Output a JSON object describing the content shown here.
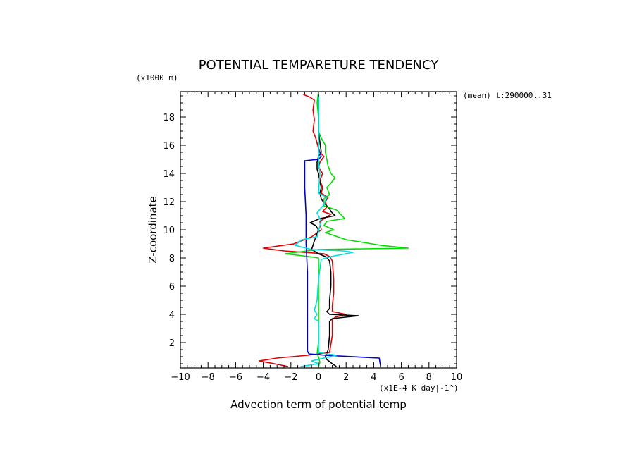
{
  "chart_data": {
    "type": "line",
    "title": "POTENTIAL TEMPARETURE TENDENCY",
    "subtitle": "(mean) t:290000..31",
    "xlabel": "Advection term of potential temp",
    "xunit": "(x1E-4 K day|-1^)",
    "ylabel": "Z-coordinate",
    "yunit": "(x1000 m)",
    "xlim": [
      -10,
      10
    ],
    "ylim": [
      0.2,
      19.8
    ],
    "x_ticks": [
      -10,
      -8,
      -6,
      -4,
      -2,
      0,
      2,
      4,
      6,
      8,
      10
    ],
    "y_ticks": [
      2,
      4,
      6,
      8,
      10,
      12,
      14,
      16,
      18
    ],
    "x_tick_labels": [
      "−10",
      "−8",
      "−6",
      "−4",
      "−2",
      "0",
      "2",
      "4",
      "6",
      "8",
      "10"
    ],
    "y_tick_labels": [
      "2",
      "4",
      "6",
      "8",
      "10",
      "12",
      "14",
      "16",
      "18"
    ],
    "grid": false,
    "colors": {
      "black": "#000000",
      "red": "#dd0000",
      "green": "#00dd00",
      "blue": "#0000cc",
      "cyan": "#00dddd"
    },
    "series": [
      {
        "color": "#dd0000",
        "points": [
          [
            -1.1,
            19.6
          ],
          [
            -0.6,
            19.4
          ],
          [
            -0.3,
            19.2
          ],
          [
            -0.4,
            18.5
          ],
          [
            -0.3,
            17.8
          ],
          [
            -0.4,
            17.0
          ],
          [
            -0.2,
            16.5
          ],
          [
            0.0,
            15.8
          ],
          [
            0.1,
            15.5
          ],
          [
            0.4,
            15.2
          ],
          [
            0.1,
            14.8
          ],
          [
            0.0,
            14.4
          ],
          [
            0.3,
            14.0
          ],
          [
            0.1,
            13.5
          ],
          [
            0.3,
            13.0
          ],
          [
            0.2,
            12.6
          ],
          [
            0.7,
            12.3
          ],
          [
            0.5,
            12.0
          ],
          [
            0.6,
            11.6
          ],
          [
            0.3,
            11.3
          ],
          [
            0.9,
            11.1
          ],
          [
            0.1,
            10.6
          ],
          [
            0.2,
            10.0
          ],
          [
            -0.5,
            9.5
          ],
          [
            -1.8,
            9.0
          ],
          [
            -4.0,
            8.7
          ],
          [
            -2.5,
            8.5
          ],
          [
            0.4,
            8.3
          ],
          [
            0.8,
            8.1
          ],
          [
            1.0,
            7.8
          ],
          [
            1.1,
            6.5
          ],
          [
            1.1,
            5.5
          ],
          [
            1.0,
            4.6
          ],
          [
            1.0,
            4.2
          ],
          [
            2.0,
            4.0
          ],
          [
            1.2,
            3.8
          ],
          [
            1.0,
            3.6
          ],
          [
            1.0,
            2.5
          ],
          [
            0.8,
            1.3
          ],
          [
            -0.8,
            1.1
          ],
          [
            -3.0,
            0.9
          ],
          [
            -4.3,
            0.7
          ],
          [
            -3.2,
            0.5
          ],
          [
            -2.2,
            0.3
          ]
        ]
      },
      {
        "color": "#000000",
        "points": [
          [
            0.0,
            19.6
          ],
          [
            0.0,
            18.5
          ],
          [
            0.0,
            17.0
          ],
          [
            0.1,
            16.2
          ],
          [
            0.2,
            15.5
          ],
          [
            0.0,
            15.2
          ],
          [
            -0.1,
            14.8
          ],
          [
            -0.1,
            14.3
          ],
          [
            0.0,
            14.0
          ],
          [
            0.1,
            13.4
          ],
          [
            0.2,
            13.0
          ],
          [
            0.1,
            12.6
          ],
          [
            0.2,
            12.2
          ],
          [
            0.4,
            11.9
          ],
          [
            0.8,
            11.5
          ],
          [
            0.9,
            11.3
          ],
          [
            1.2,
            11.0
          ],
          [
            0.1,
            10.8
          ],
          [
            -0.6,
            10.5
          ],
          [
            -0.2,
            10.3
          ],
          [
            0.0,
            10.0
          ],
          [
            -0.3,
            9.2
          ],
          [
            -0.5,
            8.6
          ],
          [
            0.0,
            8.3
          ],
          [
            0.5,
            8.1
          ],
          [
            0.8,
            7.8
          ],
          [
            0.9,
            7.0
          ],
          [
            0.9,
            6.0
          ],
          [
            0.8,
            5.0
          ],
          [
            0.8,
            4.4
          ],
          [
            0.6,
            4.2
          ],
          [
            0.8,
            4.0
          ],
          [
            2.9,
            3.9
          ],
          [
            1.0,
            3.7
          ],
          [
            0.8,
            3.5
          ],
          [
            0.8,
            2.5
          ],
          [
            0.7,
            1.5
          ],
          [
            0.6,
            1.2
          ],
          [
            0.5,
            1.0
          ],
          [
            0.6,
            0.8
          ],
          [
            1.0,
            0.5
          ],
          [
            1.3,
            0.3
          ]
        ]
      },
      {
        "color": "#00dd00",
        "points": [
          [
            0.0,
            19.8
          ],
          [
            -0.1,
            19.0
          ],
          [
            0.0,
            18.0
          ],
          [
            0.0,
            17.0
          ],
          [
            0.2,
            16.5
          ],
          [
            0.5,
            16.0
          ],
          [
            0.5,
            15.5
          ],
          [
            0.6,
            15.0
          ],
          [
            0.7,
            14.5
          ],
          [
            0.9,
            14.0
          ],
          [
            1.2,
            13.7
          ],
          [
            0.9,
            13.3
          ],
          [
            0.6,
            13.0
          ],
          [
            0.8,
            12.5
          ],
          [
            0.4,
            12.2
          ],
          [
            0.4,
            11.7
          ],
          [
            1.3,
            11.4
          ],
          [
            1.9,
            10.8
          ],
          [
            0.6,
            10.6
          ],
          [
            0.4,
            10.3
          ],
          [
            1.1,
            10.0
          ],
          [
            0.5,
            9.8
          ],
          [
            2.0,
            9.3
          ],
          [
            4.5,
            8.9
          ],
          [
            6.5,
            8.7
          ],
          [
            0.0,
            8.6
          ],
          [
            -2.4,
            8.3
          ],
          [
            -0.7,
            8.1
          ],
          [
            0.0,
            8.0
          ],
          [
            0.0,
            7.0
          ],
          [
            0.0,
            5.0
          ],
          [
            0.0,
            3.0
          ],
          [
            0.0,
            2.0
          ],
          [
            -0.1,
            1.2
          ],
          [
            0.0,
            1.0
          ],
          [
            0.1,
            0.6
          ],
          [
            0.0,
            0.3
          ]
        ]
      },
      {
        "color": "#0000cc",
        "points": [
          [
            0.1,
            15.5
          ],
          [
            0.2,
            15.2
          ],
          [
            0.0,
            15.0
          ],
          [
            -1.0,
            14.9
          ],
          [
            -1.0,
            13.0
          ],
          [
            -0.9,
            11.0
          ],
          [
            -0.9,
            9.0
          ],
          [
            -0.8,
            7.0
          ],
          [
            -0.8,
            5.0
          ],
          [
            -0.8,
            3.0
          ],
          [
            -0.8,
            1.4
          ],
          [
            -0.7,
            1.2
          ],
          [
            0.5,
            1.1
          ],
          [
            4.4,
            0.9
          ],
          [
            4.5,
            0.3
          ]
        ]
      },
      {
        "color": "#00dddd",
        "points": [
          [
            0.0,
            19.5
          ],
          [
            0.0,
            17.0
          ],
          [
            0.0,
            14.8
          ],
          [
            0.1,
            14.0
          ],
          [
            0.0,
            12.6
          ],
          [
            0.6,
            12.3
          ],
          [
            0.4,
            11.8
          ],
          [
            -0.1,
            11.2
          ],
          [
            0.2,
            10.6
          ],
          [
            0.1,
            10.3
          ],
          [
            -0.1,
            9.5
          ],
          [
            -1.2,
            9.3
          ],
          [
            -1.7,
            8.9
          ],
          [
            -0.5,
            8.6
          ],
          [
            1.8,
            8.5
          ],
          [
            2.5,
            8.4
          ],
          [
            0.9,
            8.1
          ],
          [
            0.2,
            7.9
          ],
          [
            0.0,
            6.5
          ],
          [
            -0.1,
            5.0
          ],
          [
            -0.3,
            4.3
          ],
          [
            -0.1,
            4.0
          ],
          [
            -0.3,
            3.7
          ],
          [
            0.0,
            3.5
          ],
          [
            0.0,
            2.0
          ],
          [
            0.0,
            1.3
          ],
          [
            1.3,
            1.1
          ],
          [
            -0.5,
            0.7
          ],
          [
            0.0,
            0.5
          ],
          [
            -1.3,
            0.3
          ]
        ]
      }
    ]
  }
}
